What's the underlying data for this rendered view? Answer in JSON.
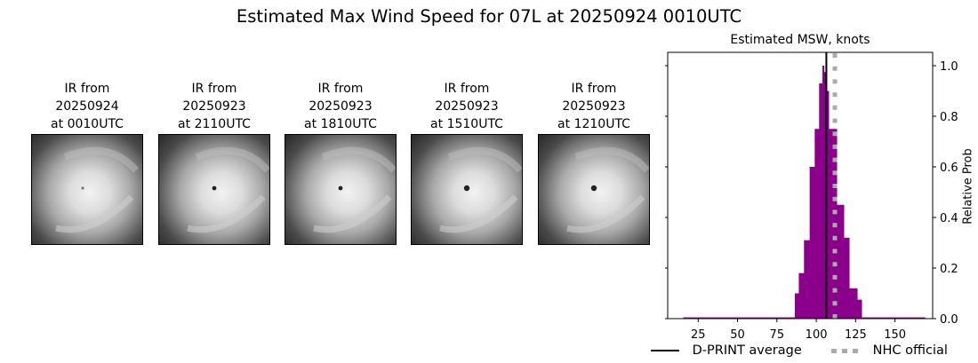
{
  "figure": {
    "title": "Estimated Max Wind Speed for 07L at 20250924 0010UTC"
  },
  "panels": [
    {
      "line1": "IR from",
      "line2": "20250924",
      "line3": "at 0010UTC",
      "eye": "faint"
    },
    {
      "line1": "IR from",
      "line2": "20250923",
      "line3": "at 2110UTC",
      "eye": "small"
    },
    {
      "line1": "IR from",
      "line2": "20250923",
      "line3": "at 1810UTC",
      "eye": "small"
    },
    {
      "line1": "IR from",
      "line2": "20250923",
      "line3": "at 1510UTC",
      "eye": "clear"
    },
    {
      "line1": "IR from",
      "line2": "20250923",
      "line3": "at 1210UTC",
      "eye": "clear"
    }
  ],
  "chart_data": {
    "type": "bar",
    "title": "Estimated MSW, knots",
    "xlabel": "",
    "ylabel": "Relative Prob",
    "xlim": [
      5.6,
      174
    ],
    "ylim": [
      0.0,
      1.05
    ],
    "xticks": [
      25,
      50,
      75,
      100,
      125,
      150
    ],
    "yticks": [
      0.0,
      0.2,
      0.4,
      0.6,
      0.8,
      1.0
    ],
    "ytick_labels": [
      "0.0",
      "0.2",
      "0.4",
      "0.6",
      "0.8",
      "1.0"
    ],
    "yaxis_side": "right",
    "grid": false,
    "bar_color": "#8b008b",
    "bars": [
      {
        "x0": 15.5,
        "x1": 86.4,
        "value": 0.005
      },
      {
        "x0": 86.4,
        "x1": 88.9,
        "value": 0.1
      },
      {
        "x0": 88.9,
        "x1": 92.2,
        "value": 0.18
      },
      {
        "x0": 92.2,
        "x1": 95.8,
        "value": 0.31
      },
      {
        "x0": 95.8,
        "x1": 99.0,
        "value": 0.6
      },
      {
        "x0": 99.0,
        "x1": 101.8,
        "value": 0.75
      },
      {
        "x0": 101.8,
        "x1": 103.9,
        "value": 0.93
      },
      {
        "x0": 103.9,
        "x1": 104.9,
        "value": 1.0
      },
      {
        "x0": 104.9,
        "x1": 106.5,
        "value": 0.975
      },
      {
        "x0": 106.5,
        "x1": 107.9,
        "value": 0.9
      },
      {
        "x0": 107.9,
        "x1": 113.0,
        "value": 0.75
      },
      {
        "x0": 113.0,
        "x1": 117.5,
        "value": 0.45
      },
      {
        "x0": 117.5,
        "x1": 120.9,
        "value": 0.32
      },
      {
        "x0": 120.9,
        "x1": 126.0,
        "value": 0.12
      },
      {
        "x0": 126.0,
        "x1": 128.8,
        "value": 0.075
      },
      {
        "x0": 128.8,
        "x1": 169.0,
        "value": 0.005
      }
    ],
    "lines": [
      {
        "name": "D-PRINT average",
        "x": 106.4,
        "style": "solid",
        "color": "#000000"
      },
      {
        "name": "NHC official",
        "x": 111.8,
        "style": "dotted",
        "color": "#aaaaaa"
      }
    ],
    "legend": [
      {
        "label": "D-PRINT average",
        "style": "solid",
        "color": "#000000"
      },
      {
        "label": "NHC official",
        "style": "dotted",
        "color": "#aaaaaa"
      }
    ],
    "legend_position": "bottom"
  }
}
